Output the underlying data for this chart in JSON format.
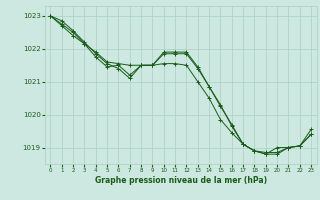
{
  "title": "Graphe pression niveau de la mer (hPa)",
  "background_color": "#cce8e0",
  "grid_color": "#aad0c0",
  "line_color": "#1a5c1a",
  "xlim": [
    -0.5,
    23.5
  ],
  "ylim": [
    1018.5,
    1023.3
  ],
  "yticks": [
    1019,
    1020,
    1021,
    1022,
    1023
  ],
  "xticks": [
    0,
    1,
    2,
    3,
    4,
    5,
    6,
    7,
    8,
    9,
    10,
    11,
    12,
    13,
    14,
    15,
    16,
    17,
    18,
    19,
    20,
    21,
    22,
    23
  ],
  "line1_x": [
    0,
    1,
    2,
    3,
    4,
    5,
    6,
    7,
    8,
    9,
    10,
    11,
    12,
    13,
    14,
    15,
    16,
    17,
    18,
    19,
    20,
    21,
    22,
    23
  ],
  "line1_y": [
    1023.0,
    1022.85,
    1022.55,
    1022.2,
    1021.85,
    1021.55,
    1021.4,
    1021.1,
    1021.5,
    1021.5,
    1021.9,
    1021.9,
    1021.9,
    1021.45,
    1020.85,
    1020.25,
    1019.7,
    1019.1,
    1018.9,
    1018.85,
    1018.85,
    1019.0,
    1019.05,
    1019.4
  ],
  "line2_x": [
    0,
    1,
    2,
    3,
    4,
    5,
    6,
    7,
    8,
    9,
    10,
    11,
    12,
    13,
    14,
    15,
    16,
    17,
    18,
    19,
    20,
    21,
    22,
    23
  ],
  "line2_y": [
    1023.0,
    1022.7,
    1022.4,
    1022.15,
    1021.75,
    1021.45,
    1021.5,
    1021.2,
    1021.5,
    1021.5,
    1021.85,
    1021.85,
    1021.85,
    1021.4,
    1020.85,
    1020.3,
    1019.65,
    1019.1,
    1018.9,
    1018.8,
    1018.8,
    1019.0,
    1019.05,
    1019.4
  ],
  "line3_x": [
    0,
    1,
    2,
    3,
    4,
    5,
    6,
    7,
    8,
    9,
    10,
    11,
    12,
    13,
    14,
    15,
    16,
    17,
    18,
    19,
    20,
    21,
    22,
    23
  ],
  "line3_y": [
    1023.0,
    1022.75,
    1022.5,
    1022.15,
    1021.9,
    1021.6,
    1021.55,
    1021.5,
    1021.5,
    1021.5,
    1021.55,
    1021.55,
    1021.5,
    1021.0,
    1020.5,
    1019.85,
    1019.45,
    1019.1,
    1018.9,
    1018.8,
    1019.0,
    1019.0,
    1019.05,
    1019.55
  ]
}
